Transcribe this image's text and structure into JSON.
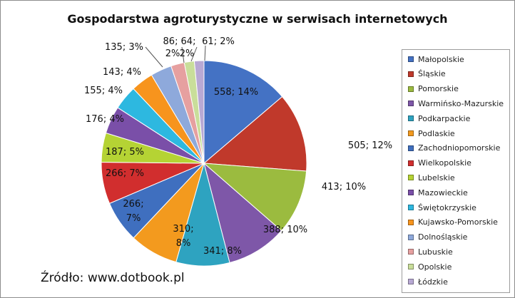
{
  "chart_data": {
    "type": "pie",
    "title": "Gospodarstwa agroturystyczne w serwisach internetowych",
    "source": "Źródło: www.dotbook.pl",
    "start_angle_deg": 0,
    "direction": "clockwise",
    "legend_position": "right",
    "slices": [
      {
        "name": "Małopolskie",
        "value": 558,
        "percent_label": "14%",
        "color": "#4472C4"
      },
      {
        "name": "Śląskie",
        "value": 505,
        "percent_label": "12%",
        "color": "#C0392B"
      },
      {
        "name": "Pomorskie",
        "value": 413,
        "percent_label": "10%",
        "color": "#9BBB3F"
      },
      {
        "name": "Warmińsko-Mazurskie",
        "value": 388,
        "percent_label": "10%",
        "color": "#7E57A8"
      },
      {
        "name": "Podkarpackie",
        "value": 341,
        "percent_label": "8%",
        "color": "#2EA3C0"
      },
      {
        "name": "Podlaskie",
        "value": 310,
        "percent_label": "8%",
        "color": "#F39A1E"
      },
      {
        "name": "Zachodniopomorskie",
        "value": 266,
        "percent_label": "7%",
        "color": "#3F6FBF"
      },
      {
        "name": "Wielkopolskie",
        "value": 266,
        "percent_label": "7%",
        "color": "#D12E2E"
      },
      {
        "name": "Lubelskie",
        "value": 187,
        "percent_label": "5%",
        "color": "#B5D334"
      },
      {
        "name": "Mazowieckie",
        "value": 176,
        "percent_label": "4%",
        "color": "#7A4FA8"
      },
      {
        "name": "Świętokrzyskie",
        "value": 155,
        "percent_label": "4%",
        "color": "#2DB8E0"
      },
      {
        "name": "Kujawsko-Pomorskie",
        "value": 143,
        "percent_label": "4%",
        "color": "#F7941D"
      },
      {
        "name": "Dolnośląskie",
        "value": 135,
        "percent_label": "3%",
        "color": "#8EA9DB"
      },
      {
        "name": "Lubuskie",
        "value": 86,
        "percent_label": "2%",
        "color": "#E6A0A0"
      },
      {
        "name": "Opolskie",
        "value": 64,
        "percent_label": "2%",
        "color": "#C9DE9A"
      },
      {
        "name": "Łódzkie",
        "value": 61,
        "percent_label": "2%",
        "color": "#B8A9D4"
      }
    ]
  }
}
